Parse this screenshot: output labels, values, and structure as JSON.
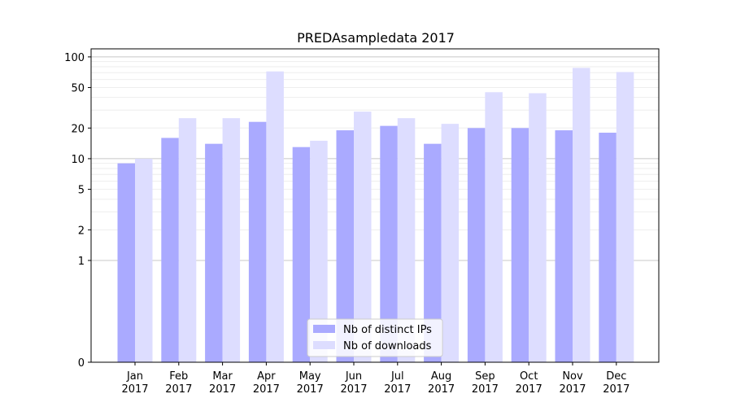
{
  "chart_data": {
    "type": "bar",
    "title": "PREDAsampledata 2017",
    "xlabel": "",
    "ylabel": "",
    "y_scale": "symlog",
    "ylim": [
      0,
      120
    ],
    "yticks": [
      0,
      1,
      2,
      5,
      10,
      20,
      50,
      100
    ],
    "categories": [
      [
        "Jan",
        "2017"
      ],
      [
        "Feb",
        "2017"
      ],
      [
        "Mar",
        "2017"
      ],
      [
        "Apr",
        "2017"
      ],
      [
        "May",
        "2017"
      ],
      [
        "Jun",
        "2017"
      ],
      [
        "Jul",
        "2017"
      ],
      [
        "Aug",
        "2017"
      ],
      [
        "Sep",
        "2017"
      ],
      [
        "Oct",
        "2017"
      ],
      [
        "Nov",
        "2017"
      ],
      [
        "Dec",
        "2017"
      ]
    ],
    "series": [
      {
        "name": "Nb of distinct IPs",
        "color": "#aaaaff",
        "values": [
          9,
          16,
          14,
          23,
          13,
          19,
          21,
          14,
          20,
          20,
          19,
          18
        ]
      },
      {
        "name": "Nb of downloads",
        "color": "#ddddff",
        "values": [
          10,
          25,
          25,
          72,
          15,
          29,
          25,
          22,
          45,
          44,
          78,
          71
        ]
      }
    ],
    "legend_position": "lower-center",
    "grid": true
  }
}
